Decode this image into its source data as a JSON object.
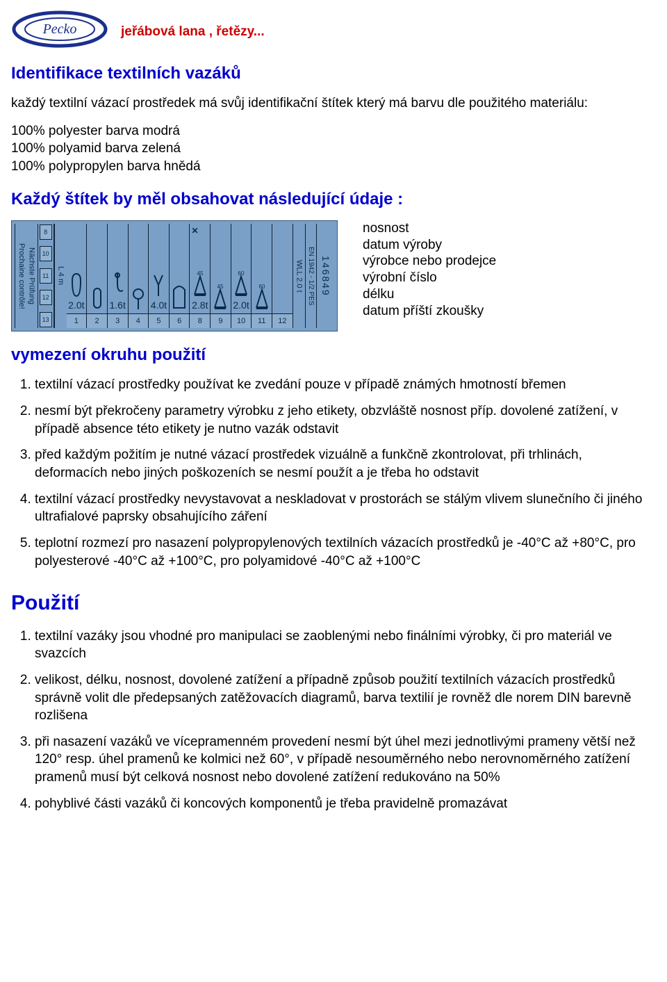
{
  "brand": {
    "logo_text": "Pecko",
    "tagline": "jeřábová lana , řetězy...",
    "tagline_color": "#cc0000",
    "logo_outer": "#1b2f8e",
    "logo_inner": "#ffffff"
  },
  "colors": {
    "heading_blue": "#0000cc",
    "body_text": "#000000",
    "label_bg": "#7aa0c8",
    "label_ink": "#0b2b4a"
  },
  "h1": "Identifikace textilních vazáků",
  "intro": "každý textilní vázací prostředek má svůj identifikační štítek který má barvu dle použitého materiálu:",
  "materials": [
    "100% polyester barva modrá",
    "100% polyamid barva zelená",
    "100% polypropylen barva hnědá"
  ],
  "h2": "Každý štítek by měl obsahovat následující údaje  :",
  "label_fig": {
    "inspection_caption": "Nächste Prüfung\nProchaine contrôle!",
    "date_boxes": [
      "8",
      "10",
      "11",
      "12",
      "13"
    ],
    "length_caption": "L   4   m",
    "cells": [
      {
        "weight": "2.0t",
        "num": "1",
        "kind": "eye",
        "x": false
      },
      {
        "weight": "",
        "num": "2",
        "kind": "link",
        "x": false
      },
      {
        "weight": "1.6t",
        "num": "3",
        "kind": "hook",
        "x": false
      },
      {
        "weight": "",
        "num": "4",
        "kind": "ring",
        "x": false
      },
      {
        "weight": "4.0t",
        "num": "5",
        "kind": "choke",
        "x": false
      },
      {
        "weight": "",
        "num": "6",
        "kind": "basket",
        "x": false
      },
      {
        "weight": "2.8t",
        "num": "8",
        "kind": "ang45",
        "x": true,
        "note": "45"
      },
      {
        "weight": "",
        "num": "9",
        "kind": "ang45b",
        "x": false,
        "note": "45"
      },
      {
        "weight": "2.0t",
        "num": "10",
        "kind": "ang60",
        "x": false,
        "note": "60"
      },
      {
        "weight": "",
        "num": "11",
        "kind": "ang60b",
        "x": false,
        "note": "60"
      },
      {
        "weight": "",
        "num": "12",
        "kind": "blank",
        "x": false
      }
    ],
    "wll_caption": "WLL  2.0 t",
    "en_caption": "EN 1942 - 1/2 PES",
    "serial": "146849"
  },
  "label_attrs": [
    "nosnost",
    "datum výroby",
    "výrobce nebo prodejce",
    "výrobní číslo",
    "délku",
    "datum příští zkoušky"
  ],
  "h3": "vymezení okruhu použití",
  "scope_list": [
    "textilní vázací prostředky používat ke zvedání pouze v případě známých hmotností břemen",
    "nesmí být překročeny parametry výrobku z jeho etikety, obzvláště nosnost příp. dovolené zatížení, v případě absence této etikety je nutno vazák odstavit",
    "před každým požitím je nutné vázací prostředek vizuálně a funkčně zkontrolovat, při trhlinách, deformacích nebo jiných poškozeních se nesmí použít a je třeba ho odstavit",
    "textilní vázací prostředky nevystavovat a neskladovat v prostorách se stálým vlivem slunečního či jiného ultrafialové paprsky obsahujícího záření",
    "teplotní rozmezí pro nasazení polypropylenových textilních vázacích prostředků je -40°C až +80°C, pro polyesterové -40°C až +100°C, pro polyamidové -40°C až +100°C"
  ],
  "h4": "Použití",
  "use_list": [
    "textilní vazáky jsou vhodné pro manipulaci se zaoblenými nebo finálními výrobky, či pro materiál ve svazcích",
    "velikost, délku, nosnost, dovolené zatížení a případně způsob použití textilních vázacích prostředků správně volit dle předepsaných zatěžovacích diagramů, barva textilií je rovněž dle norem DIN barevně rozlišena",
    "při nasazení vazáků ve vícepramenném provedení nesmí být úhel mezi jednotlivými prameny větší než 120° resp. úhel pramenů ke kolmici než 60°, v případě nesouměrného nebo nerovnoměrného zatížení pramenů musí být celková nosnost nebo dovolené zatížení redukováno na 50%",
    "pohyblivé části vazáků či koncových komponentů je třeba pravidelně promazávat"
  ]
}
